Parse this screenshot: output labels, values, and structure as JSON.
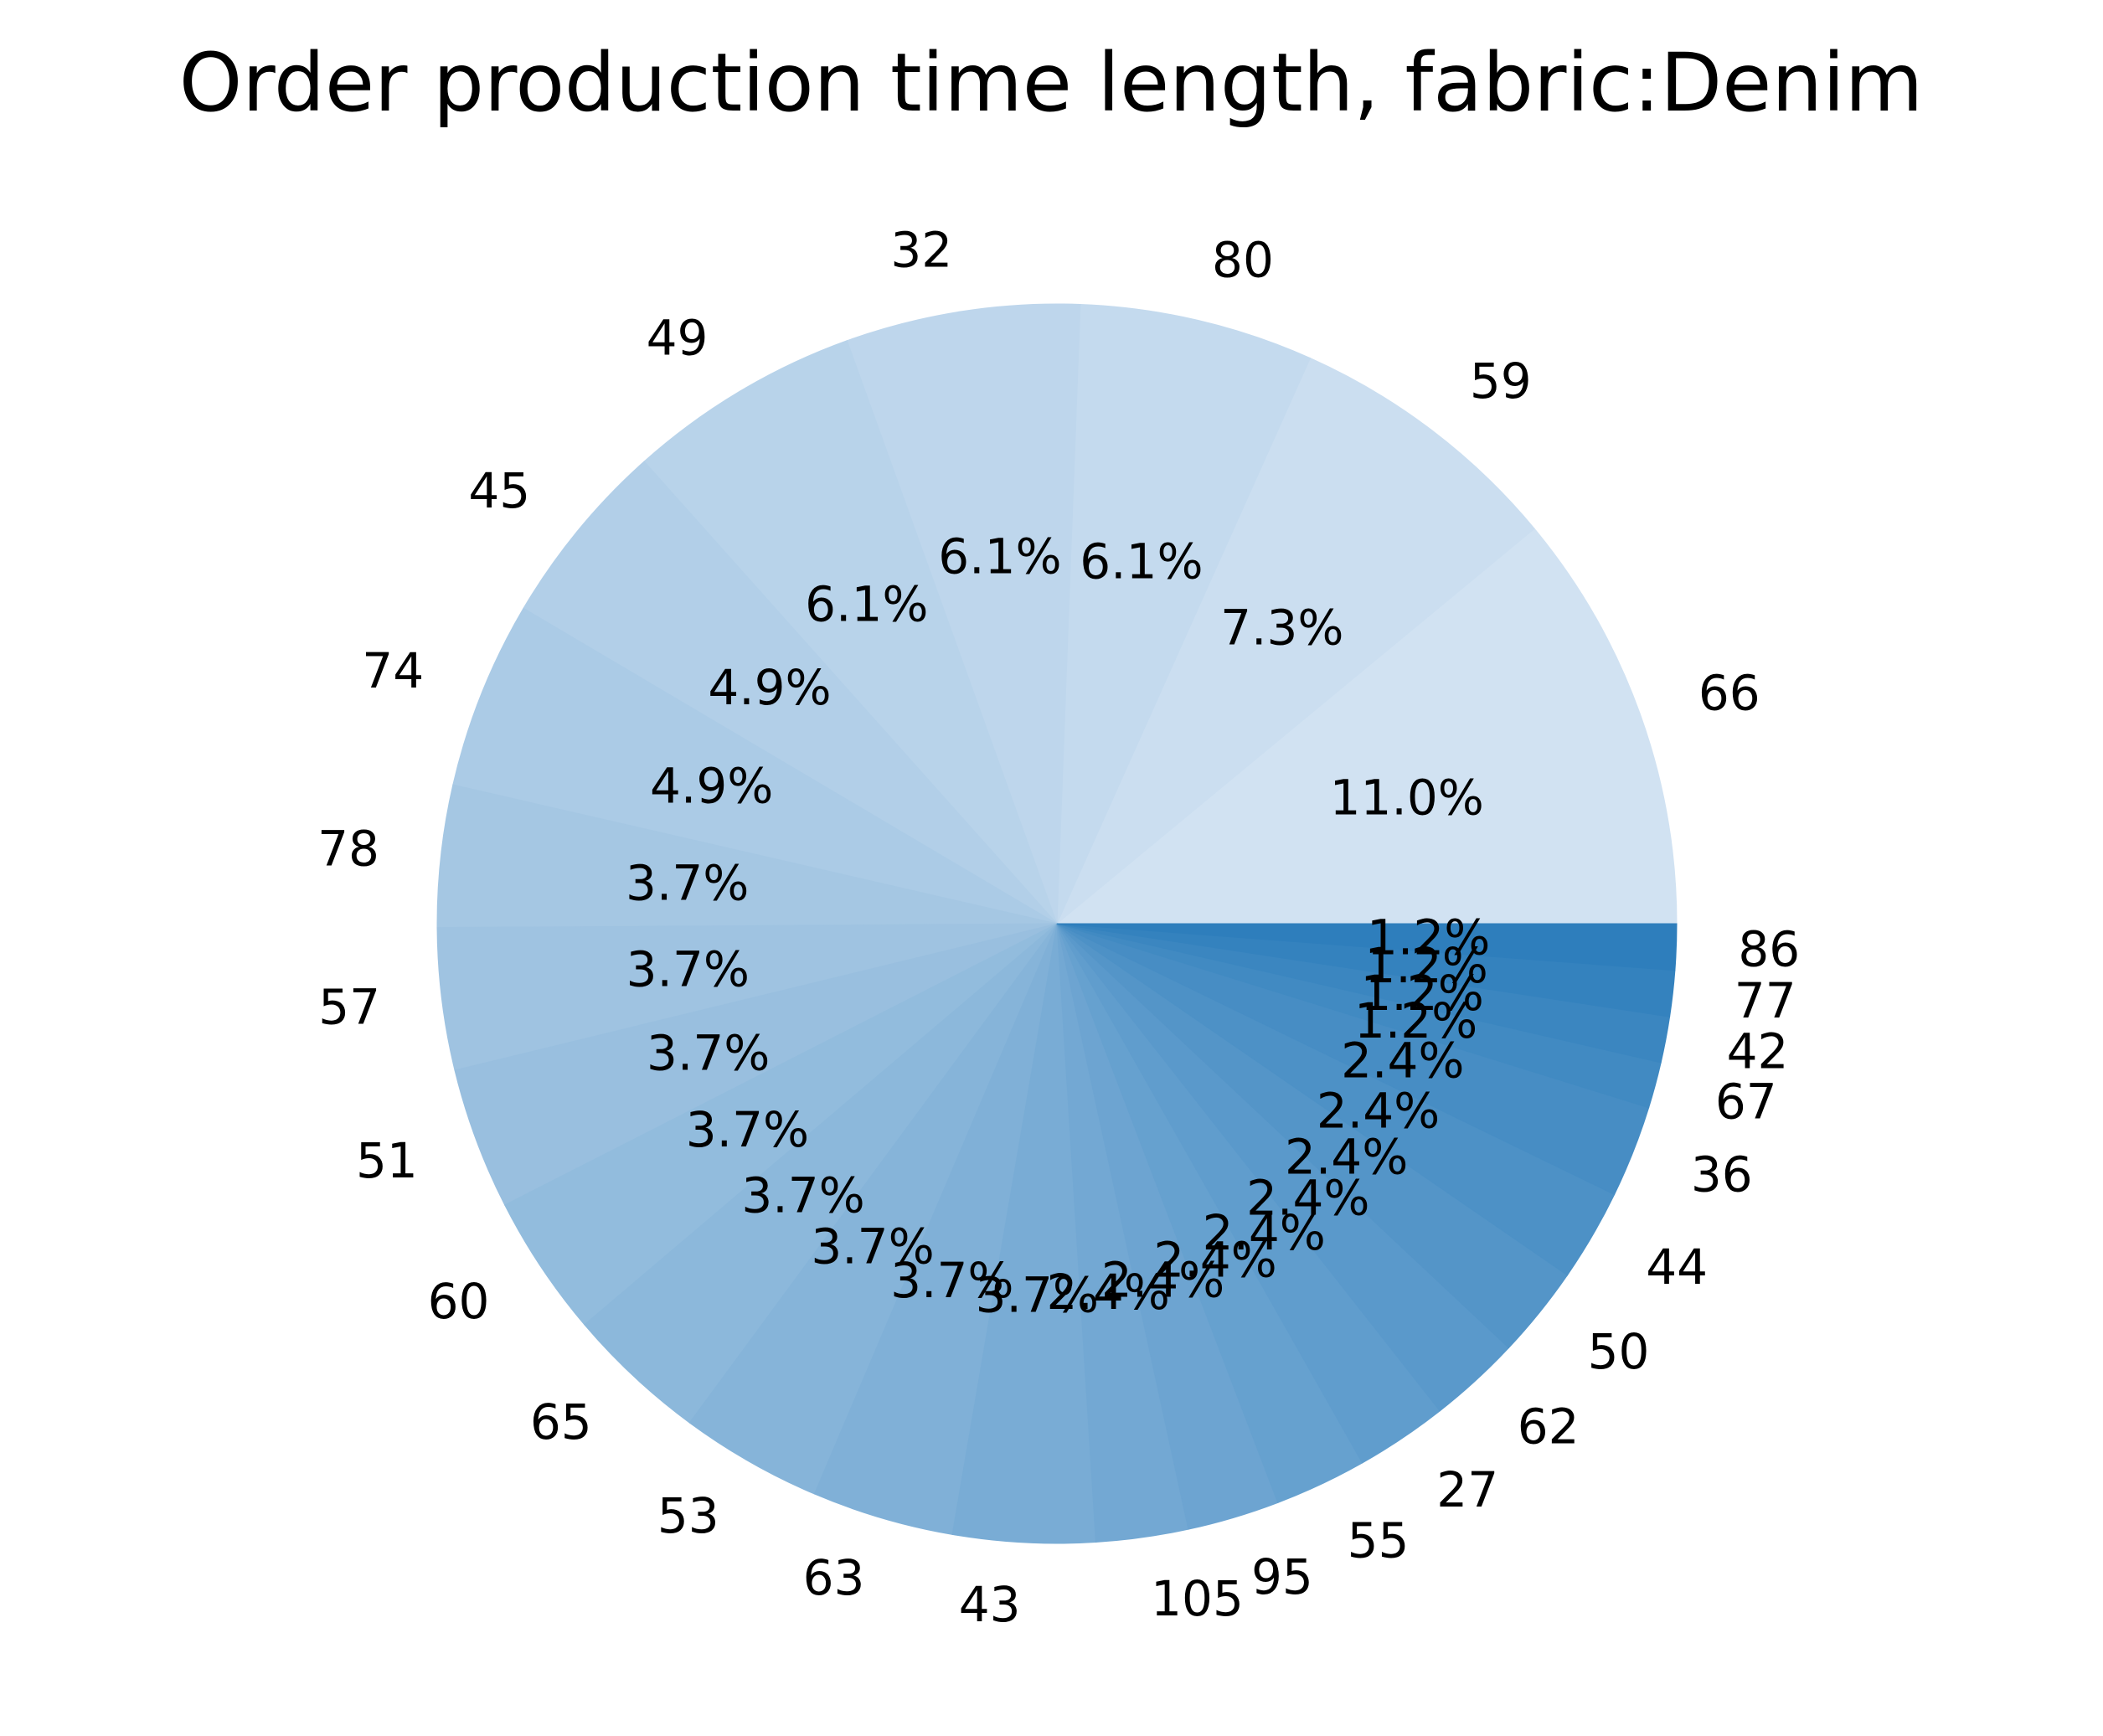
{
  "chart_data": {
    "type": "pie",
    "title": "Order production time length, fabric:Denim",
    "start_angle_deg": 0,
    "direction": "counterclockwise",
    "color_range": [
      "#d1e2f2",
      "#2e7ebc"
    ],
    "slices": [
      {
        "label": "66",
        "value": 11.0,
        "pct_label": "11.0%"
      },
      {
        "label": "59",
        "value": 7.3,
        "pct_label": "7.3%"
      },
      {
        "label": "80",
        "value": 6.1,
        "pct_label": "6.1%"
      },
      {
        "label": "32",
        "value": 6.1,
        "pct_label": "6.1%"
      },
      {
        "label": "49",
        "value": 6.1,
        "pct_label": "6.1%"
      },
      {
        "label": "45",
        "value": 4.9,
        "pct_label": "4.9%"
      },
      {
        "label": "74",
        "value": 4.9,
        "pct_label": "4.9%"
      },
      {
        "label": "78",
        "value": 3.7,
        "pct_label": "3.7%"
      },
      {
        "label": "57",
        "value": 3.7,
        "pct_label": "3.7%"
      },
      {
        "label": "51",
        "value": 3.7,
        "pct_label": "3.7%"
      },
      {
        "label": "60",
        "value": 3.7,
        "pct_label": "3.7%"
      },
      {
        "label": "65",
        "value": 3.7,
        "pct_label": "3.7%"
      },
      {
        "label": "53",
        "value": 3.7,
        "pct_label": "3.7%"
      },
      {
        "label": "63",
        "value": 3.7,
        "pct_label": "3.7%"
      },
      {
        "label": "43",
        "value": 3.7,
        "pct_label": "3.7%"
      },
      {
        "label": "105",
        "value": 2.4,
        "pct_label": "2.4%"
      },
      {
        "label": "95",
        "value": 2.4,
        "pct_label": "2.4%"
      },
      {
        "label": "55",
        "value": 2.4,
        "pct_label": "2.4%"
      },
      {
        "label": "27",
        "value": 2.4,
        "pct_label": "2.4%"
      },
      {
        "label": "62",
        "value": 2.4,
        "pct_label": "2.4%"
      },
      {
        "label": "50",
        "value": 2.4,
        "pct_label": "2.4%"
      },
      {
        "label": "44",
        "value": 2.4,
        "pct_label": "2.4%"
      },
      {
        "label": "36",
        "value": 2.4,
        "pct_label": "2.4%"
      },
      {
        "label": "67",
        "value": 1.2,
        "pct_label": "1.2%"
      },
      {
        "label": "42",
        "value": 1.2,
        "pct_label": "1.2%"
      },
      {
        "label": "77",
        "value": 1.2,
        "pct_label": "1.2%"
      },
      {
        "label": "86",
        "value": 1.2,
        "pct_label": "1.2%"
      }
    ]
  }
}
